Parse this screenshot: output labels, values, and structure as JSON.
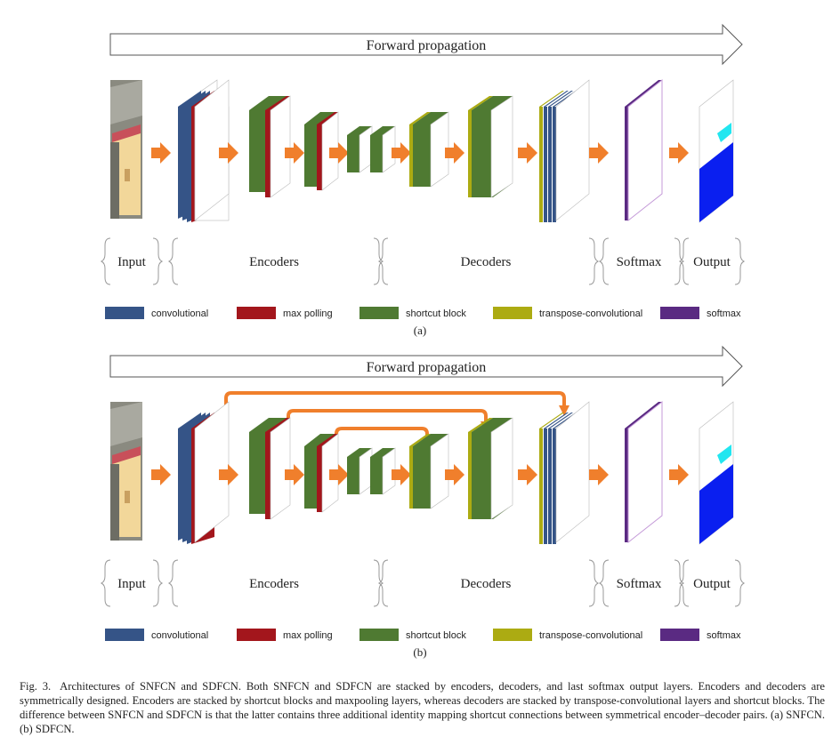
{
  "forward_label": "Forward propagation",
  "stage_labels": {
    "input": "Input",
    "encoders": "Encoders",
    "decoders": "Decoders",
    "softmax": "Softmax",
    "output": "Output"
  },
  "legend": [
    {
      "key": "convolutional",
      "label": "convolutional",
      "color": "#355487"
    },
    {
      "key": "maxpool",
      "label": "max polling",
      "color": "#a3161c"
    },
    {
      "key": "shortcut",
      "label": "shortcut block",
      "color": "#4f7a32"
    },
    {
      "key": "transpose",
      "label": "transpose-convolutional",
      "color": "#acab12"
    },
    {
      "key": "softmax",
      "label": "softmax",
      "color": "#5a2a82"
    }
  ],
  "panels": [
    {
      "id": "a",
      "label": "(a)"
    },
    {
      "id": "b",
      "label": "(b)"
    }
  ],
  "caption": {
    "fig_no": "Fig. 3.",
    "text": "Architectures of SNFCN and SDFCN. Both SNFCN and SDFCN are stacked by encoders, decoders, and last softmax output layers. Encoders and decoders are symmetrically designed. Encoders are stacked by shortcut blocks and maxpooling layers, whereas decoders are stacked by transpose-convolutional layers and shortcut blocks. The difference between SNFCN and SDFCN is that the latter contains three additional identity mapping shortcut connections between symmetrical encoder–decoder pairs. (a) SNFCN. (b) SDFCN."
  },
  "colors": {
    "flow_arrow": "#f07f2c",
    "skip_arrow": "#f07f2c",
    "output_blue": "#0a1ff0",
    "output_cyan": "#22e6f0"
  }
}
